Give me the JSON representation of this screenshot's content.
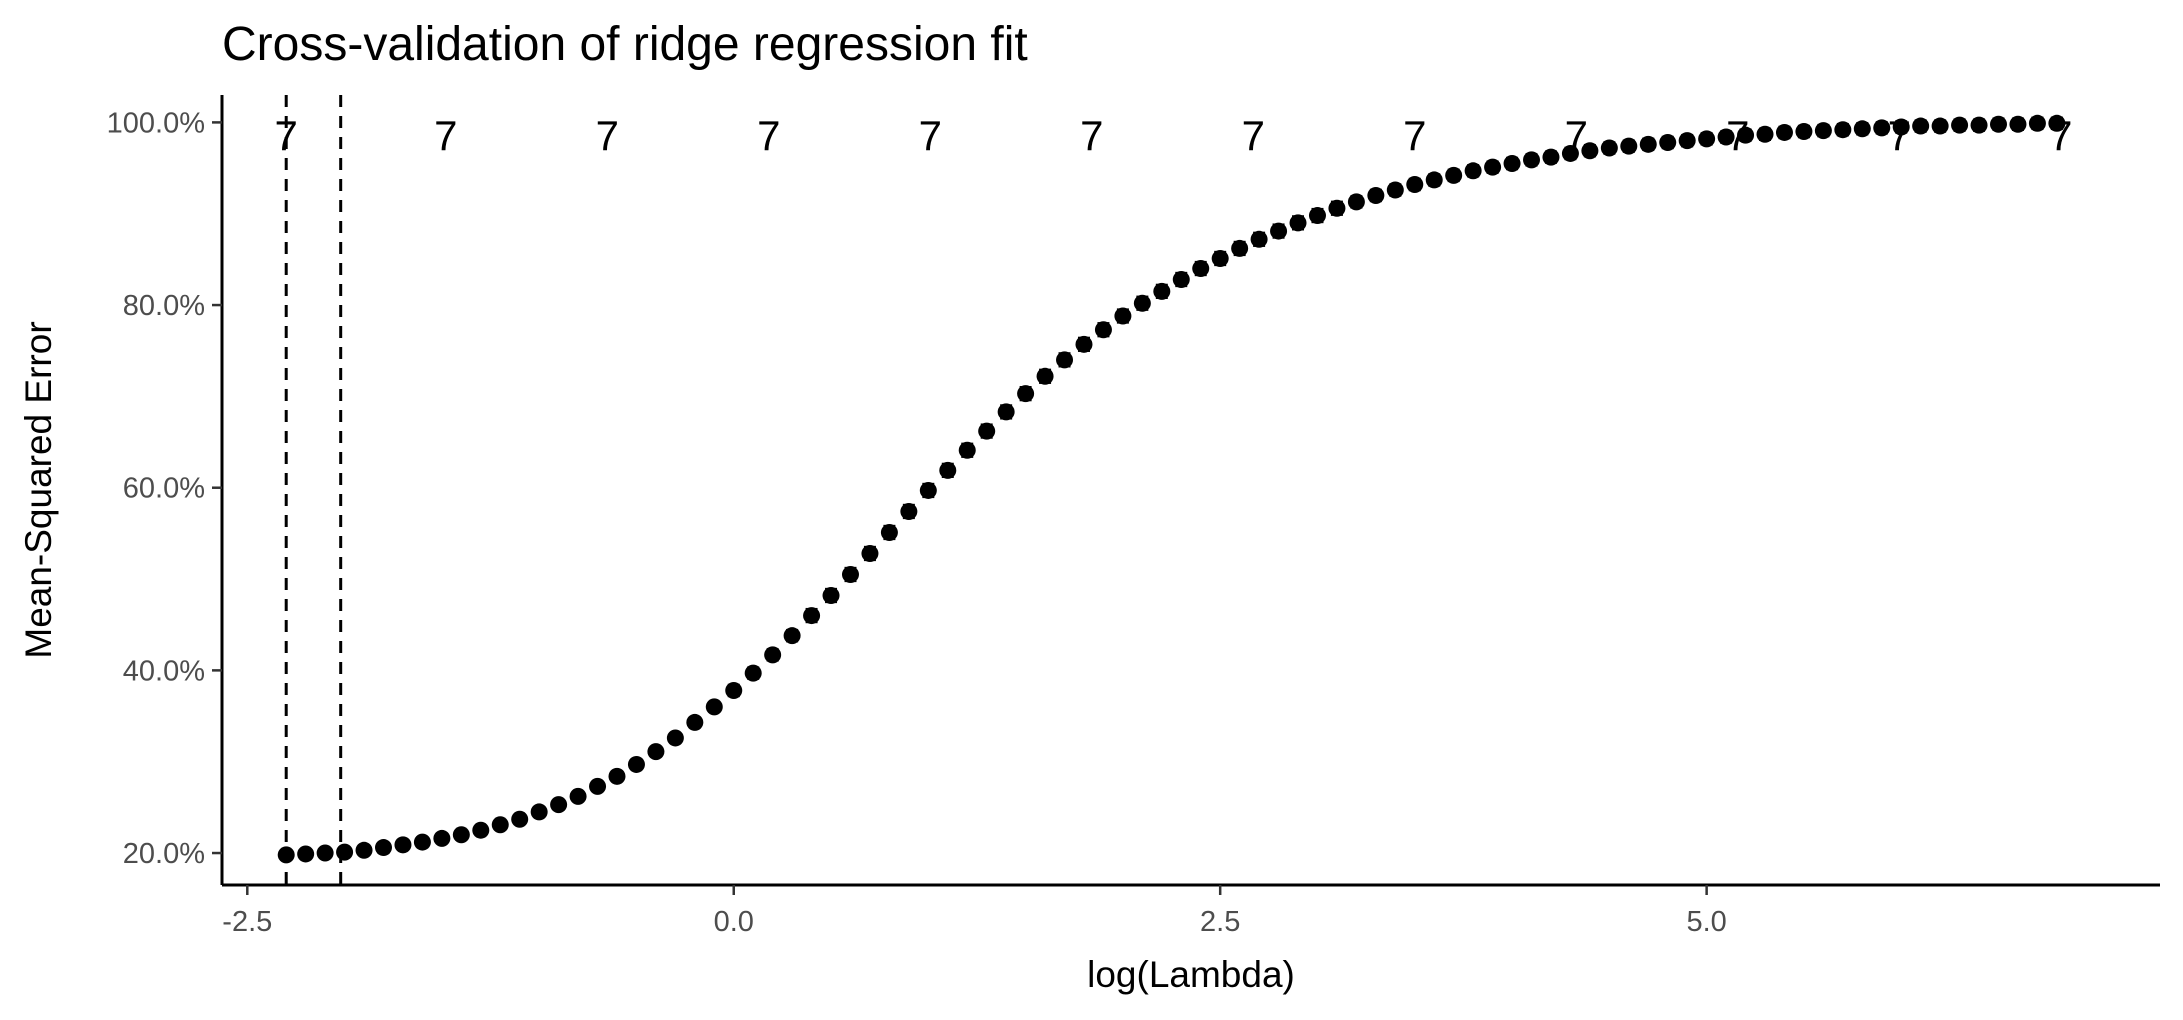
{
  "chart_data": {
    "type": "scatter",
    "title": "Cross-validation of ridge regression fit",
    "xlabel": "log(Lambda)",
    "ylabel": "Mean-Squared Error",
    "xlim": [
      -2.63,
      7.33
    ],
    "ylim": [
      0.165,
      1.03
    ],
    "x_ticks": [
      {
        "value": -2.5,
        "label": "-2.5"
      },
      {
        "value": 0.0,
        "label": "0.0"
      },
      {
        "value": 2.5,
        "label": "2.5"
      },
      {
        "value": 5.0,
        "label": "5.0"
      }
    ],
    "y_ticks": [
      {
        "value": 0.2,
        "label": "20.0%"
      },
      {
        "value": 0.4,
        "label": "40.0%"
      },
      {
        "value": 0.6,
        "label": "60.0%"
      },
      {
        "value": 0.8,
        "label": "80.0%"
      },
      {
        "value": 1.0,
        "label": "100.0%"
      }
    ],
    "top_labels": {
      "x": [
        -2.3,
        -1.48,
        -0.65,
        0.18,
        1.01,
        1.84,
        2.67,
        3.5,
        4.33,
        5.16,
        5.99,
        6.82
      ],
      "labels": [
        "7",
        "7",
        "7",
        "7",
        "7",
        "7",
        "7",
        "7",
        "7",
        "7",
        "7",
        "7"
      ]
    },
    "vlines": [
      -2.3,
      -2.02
    ],
    "grid": false,
    "legend": "none",
    "series": [
      {
        "point_color": "#000000",
        "x": [
          -2.3,
          -2.2,
          -2.1,
          -2.0,
          -1.9,
          -1.8,
          -1.7,
          -1.6,
          -1.5,
          -1.4,
          -1.3,
          -1.2,
          -1.1,
          -1.0,
          -0.9,
          -0.8,
          -0.7,
          -0.6,
          -0.5,
          -0.4,
          -0.3,
          -0.2,
          -0.1,
          0.0,
          0.1,
          0.2,
          0.3,
          0.4,
          0.5,
          0.6,
          0.7,
          0.8,
          0.9,
          1.0,
          1.1,
          1.2,
          1.3,
          1.4,
          1.5,
          1.6,
          1.7,
          1.8,
          1.9,
          2.0,
          2.1,
          2.2,
          2.3,
          2.4,
          2.5,
          2.6,
          2.7,
          2.8,
          2.9,
          3.0,
          3.1,
          3.2,
          3.3,
          3.4,
          3.5,
          3.6,
          3.7,
          3.8,
          3.9,
          4.0,
          4.1,
          4.2,
          4.3,
          4.4,
          4.5,
          4.6,
          4.7,
          4.8,
          4.9,
          5.0,
          5.1,
          5.2,
          5.3,
          5.4,
          5.5,
          5.6,
          5.7,
          5.8,
          5.9,
          6.0,
          6.1,
          6.2,
          6.3,
          6.4,
          6.5,
          6.6,
          6.7,
          6.8
        ],
        "y": [
          0.198,
          0.199,
          0.2,
          0.201,
          0.203,
          0.206,
          0.209,
          0.212,
          0.216,
          0.22,
          0.225,
          0.231,
          0.237,
          0.245,
          0.253,
          0.262,
          0.273,
          0.284,
          0.297,
          0.311,
          0.326,
          0.343,
          0.36,
          0.378,
          0.397,
          0.417,
          0.438,
          0.46,
          0.482,
          0.505,
          0.528,
          0.551,
          0.574,
          0.597,
          0.619,
          0.641,
          0.662,
          0.683,
          0.703,
          0.722,
          0.74,
          0.757,
          0.773,
          0.788,
          0.802,
          0.815,
          0.828,
          0.84,
          0.851,
          0.862,
          0.872,
          0.881,
          0.89,
          0.898,
          0.906,
          0.913,
          0.92,
          0.926,
          0.932,
          0.937,
          0.942,
          0.947,
          0.951,
          0.955,
          0.959,
          0.962,
          0.966,
          0.969,
          0.972,
          0.974,
          0.976,
          0.978,
          0.98,
          0.982,
          0.984,
          0.986,
          0.987,
          0.989,
          0.99,
          0.991,
          0.992,
          0.993,
          0.994,
          0.995,
          0.996,
          0.996,
          0.997,
          0.997,
          0.998,
          0.998,
          0.999,
          0.999
        ],
        "error": [
          0.004,
          0.004,
          0.004,
          0.004,
          0.004,
          0.004,
          0.004,
          0.004,
          0.004,
          0.004,
          0.004,
          0.004,
          0.004,
          0.004,
          0.004,
          0.004,
          0.004,
          0.005,
          0.005,
          0.005,
          0.005,
          0.005,
          0.005,
          0.006,
          0.006,
          0.006,
          0.006,
          0.007,
          0.007,
          0.007,
          0.007,
          0.007,
          0.007,
          0.007,
          0.007,
          0.007,
          0.007,
          0.007,
          0.007,
          0.007,
          0.007,
          0.007,
          0.007,
          0.007,
          0.007,
          0.007,
          0.007,
          0.007,
          0.007,
          0.007,
          0.007,
          0.007,
          0.007,
          0.007,
          0.007,
          0.006,
          0.006,
          0.006,
          0.006,
          0.006,
          0.006,
          0.006,
          0.006,
          0.006,
          0.006,
          0.006,
          0.006,
          0.006,
          0.006,
          0.006,
          0.006,
          0.006,
          0.006,
          0.006,
          0.006,
          0.006,
          0.006,
          0.006,
          0.006,
          0.006,
          0.006,
          0.006,
          0.006,
          0.006,
          0.006,
          0.006,
          0.006,
          0.006,
          0.006,
          0.006,
          0.006,
          0.006
        ]
      }
    ]
  }
}
